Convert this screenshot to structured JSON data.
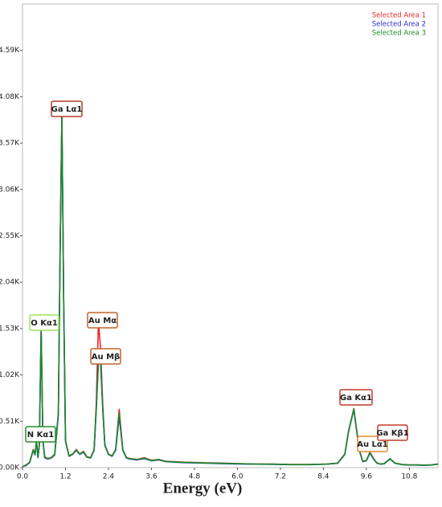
{
  "chart_data": {
    "type": "line",
    "x_label": "Energy (eV)",
    "xlim": [
      0,
      11.6
    ],
    "ylim": [
      0,
      5100
    ],
    "xticks": [
      {
        "value": 0,
        "label": "0.0"
      },
      1.2,
      2.4,
      3.6,
      4.8,
      {
        "value": 6,
        "label": "6.0"
      },
      7.2,
      8.4,
      9.6,
      10.8
    ],
    "yticks": [
      {
        "value": 0,
        "label": "0.00K"
      },
      {
        "value": 510,
        "label": "0.51K"
      },
      {
        "value": 1020,
        "label": "1.02K"
      },
      {
        "value": 1530,
        "label": "1.53K"
      },
      {
        "value": 2040,
        "label": "2.04K"
      },
      {
        "value": 2550,
        "label": "2.55K"
      },
      {
        "value": 3060,
        "label": "3.06K"
      },
      {
        "value": 3570,
        "label": "3.57K"
      },
      {
        "value": 4080,
        "label": "4.08K"
      },
      {
        "value": 4590,
        "label": "4.59K"
      }
    ],
    "legend": "upper right",
    "x": [
      0,
      0.1,
      0.2,
      0.3,
      0.35,
      0.39,
      0.43,
      0.47,
      0.52,
      0.57,
      0.62,
      0.7,
      0.8,
      0.9,
      1.0,
      1.05,
      1.1,
      1.15,
      1.2,
      1.3,
      1.4,
      1.5,
      1.6,
      1.7,
      1.8,
      1.9,
      2.0,
      2.06,
      2.12,
      2.18,
      2.24,
      2.3,
      2.4,
      2.5,
      2.6,
      2.7,
      2.8,
      2.9,
      3.0,
      3.2,
      3.4,
      3.6,
      3.8,
      4.0,
      4.5,
      5.0,
      5.5,
      6.0,
      6.5,
      7.0,
      7.5,
      8.0,
      8.5,
      8.8,
      9.0,
      9.1,
      9.25,
      9.4,
      9.5,
      9.6,
      9.7,
      9.8,
      9.9,
      10.0,
      10.1,
      10.26,
      10.4,
      10.6,
      10.8,
      11.0,
      11.2,
      11.4,
      11.6
    ],
    "series": [
      {
        "name": "Selected Area 1",
        "color": "#e8262a",
        "values": [
          10,
          30,
          60,
          200,
          150,
          300,
          120,
          250,
          1540,
          300,
          120,
          100,
          110,
          150,
          600,
          2400,
          3880,
          1800,
          300,
          130,
          150,
          200,
          150,
          180,
          120,
          110,
          200,
          700,
          1610,
          1300,
          700,
          250,
          150,
          130,
          200,
          640,
          200,
          110,
          100,
          90,
          110,
          80,
          90,
          70,
          60,
          55,
          50,
          45,
          40,
          40,
          35,
          35,
          40,
          50,
          150,
          400,
          650,
          200,
          70,
          80,
          170,
          100,
          50,
          40,
          45,
          100,
          50,
          35,
          30,
          30,
          28,
          30,
          40
        ]
      },
      {
        "name": "Selected Area 2",
        "color": "#2b2bd6",
        "values": [
          10,
          25,
          55,
          190,
          140,
          290,
          110,
          240,
          1500,
          290,
          110,
          95,
          105,
          140,
          580,
          2350,
          3850,
          1780,
          290,
          125,
          145,
          190,
          145,
          170,
          115,
          105,
          190,
          650,
          1200,
          1150,
          650,
          240,
          145,
          125,
          190,
          560,
          190,
          105,
          95,
          85,
          100,
          75,
          85,
          65,
          55,
          50,
          45,
          40,
          38,
          36,
          33,
          33,
          38,
          48,
          145,
          390,
          640,
          195,
          65,
          75,
          160,
          95,
          48,
          38,
          42,
          95,
          48,
          33,
          28,
          28,
          26,
          28,
          38
        ]
      },
      {
        "name": "Selected Area 3",
        "color": "#1c8a2c",
        "values": [
          12,
          28,
          58,
          195,
          145,
          295,
          115,
          245,
          1520,
          295,
          115,
          98,
          108,
          145,
          590,
          2380,
          3860,
          1790,
          295,
          128,
          148,
          195,
          148,
          175,
          118,
          108,
          195,
          640,
          1150,
          1180,
          660,
          245,
          148,
          128,
          195,
          600,
          195,
          108,
          98,
          88,
          105,
          78,
          88,
          68,
          58,
          52,
          48,
          43,
          39,
          38,
          34,
          34,
          39,
          49,
          148,
          395,
          645,
          198,
          68,
          78,
          165,
          98,
          49,
          39,
          44,
          98,
          49,
          34,
          29,
          29,
          27,
          29,
          39
        ]
      }
    ],
    "annotations": [
      "N  Kα1",
      "O  Kα1",
      "Ga Lα1",
      "Au Mα",
      "Au Mβ",
      "Ga Kα1",
      "Au Lα1",
      "Ga Kβ1"
    ]
  }
}
